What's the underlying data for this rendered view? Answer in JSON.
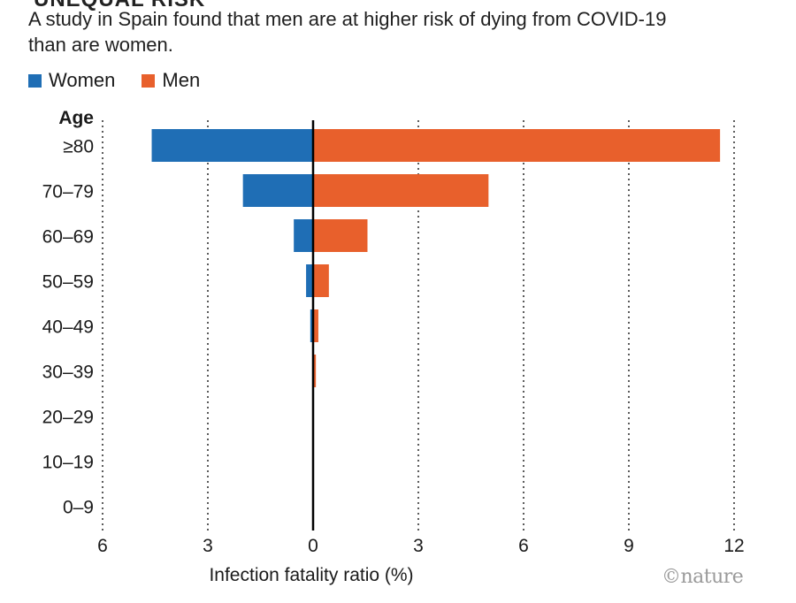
{
  "header": {
    "cut_title": "UNEQUAL RISK",
    "subtitle": "A study in Spain found that men are at higher risk of dying from COVID-19 than are women."
  },
  "legend": {
    "women_label": "Women",
    "men_label": "Men"
  },
  "colors": {
    "women": "#1f6eb5",
    "men": "#e8602c",
    "grid": "#333333",
    "axis": "#000000"
  },
  "credit": "©nature",
  "chart_data": {
    "type": "bar",
    "orientation": "horizontal-diverging",
    "categories": [
      "≥80",
      "70–79",
      "60–69",
      "50–59",
      "40–49",
      "30–39",
      "20–29",
      "10–19",
      "0–9"
    ],
    "series": [
      {
        "name": "Women",
        "values": [
          4.6,
          2.0,
          0.55,
          0.2,
          0.08,
          0.02,
          0.0,
          0.0,
          0.0
        ]
      },
      {
        "name": "Men",
        "values": [
          11.6,
          5.0,
          1.55,
          0.45,
          0.15,
          0.08,
          0.01,
          0.0,
          0.0
        ]
      }
    ],
    "xlabel": "Infection fatality ratio (%)",
    "ylabel": "Age",
    "xlim": [
      -6,
      12
    ],
    "xticks": [
      -6,
      -3,
      0,
      3,
      6,
      9,
      12
    ],
    "xtick_labels": [
      "6",
      "3",
      "0",
      "3",
      "6",
      "9",
      "12"
    ],
    "grid": "vertical dotted",
    "legend_position": "top-left"
  }
}
